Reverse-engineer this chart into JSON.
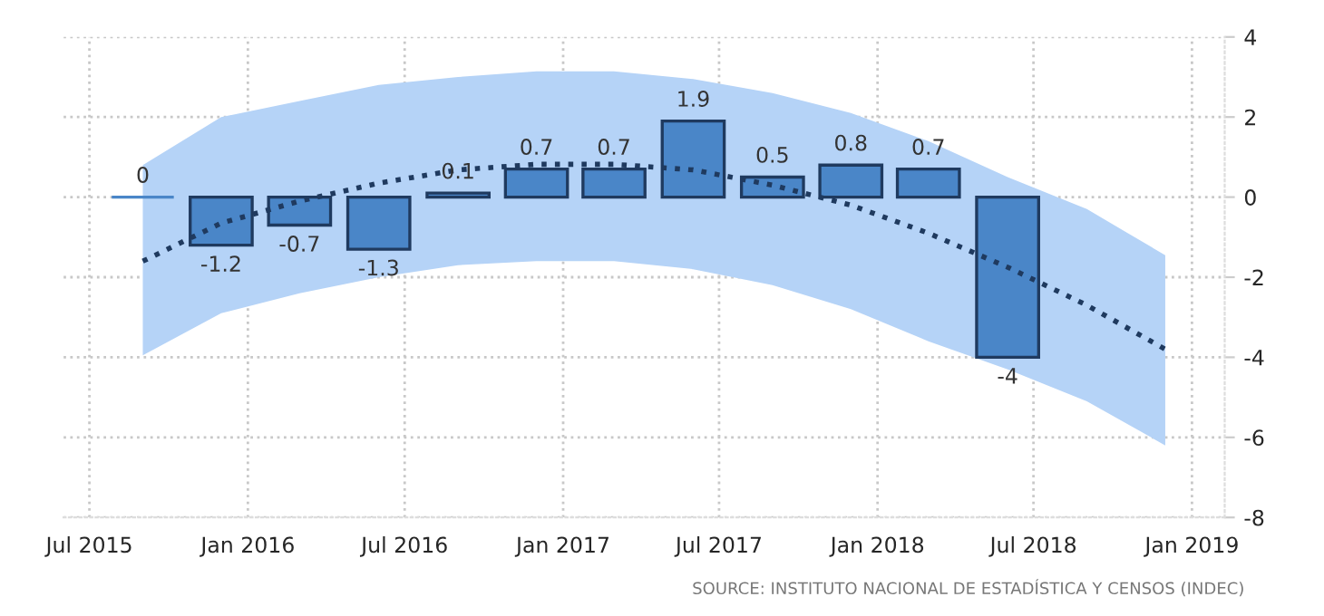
{
  "chart_data": {
    "type": "bar",
    "x": [
      "2015-09",
      "2015-12",
      "2016-03",
      "2016-06",
      "2016-09",
      "2016-12",
      "2017-03",
      "2017-06",
      "2017-09",
      "2017-12",
      "2018-03",
      "2018-06"
    ],
    "series": [
      {
        "color": "#4a86c8",
        "values": [
          0,
          -1.2,
          -0.7,
          -1.3,
          0.1,
          0.7,
          0.7,
          1.9,
          0.5,
          0.8,
          0.7,
          -4
        ],
        "value_labels": [
          "0",
          "-1.2",
          "-0.7",
          "-1.3",
          "0.1",
          "0.7",
          "0.7",
          "1.9",
          "0.5",
          "0.8",
          "0.7",
          "-4"
        ]
      },
      {
        "type": "line",
        "color": "#1f3a5f",
        "line_style": "dotted",
        "x": [
          "2015-09",
          "2015-12",
          "2016-03",
          "2016-06",
          "2016-09",
          "2016-12",
          "2017-03",
          "2017-06",
          "2017-09",
          "2017-12",
          "2018-03",
          "2018-06",
          "2018-09",
          "2018-12"
        ],
        "values": [
          -1.6,
          -0.65,
          -0.1,
          0.35,
          0.68,
          0.82,
          0.82,
          0.68,
          0.3,
          -0.2,
          -0.9,
          -1.75,
          -2.7,
          -3.8
        ],
        "lower": [
          -3.95,
          -2.9,
          -2.4,
          -2.0,
          -1.7,
          -1.6,
          -1.6,
          -1.8,
          -2.2,
          -2.8,
          -3.6,
          -4.3,
          -5.1,
          -6.2
        ],
        "upper": [
          0.8,
          2.0,
          2.4,
          2.8,
          3.0,
          3.14,
          3.14,
          2.95,
          2.6,
          2.1,
          1.4,
          0.5,
          -0.3,
          -1.45
        ]
      }
    ],
    "xlim": [
      "2015-06-01",
      "2019-02-08"
    ],
    "xticks": [
      {
        "value": "2015-07",
        "label": "Jul 2015"
      },
      {
        "value": "2016-01",
        "label": "Jan 2016"
      },
      {
        "value": "2016-07",
        "label": "Jul 2016"
      },
      {
        "value": "2017-01",
        "label": "Jan 2017"
      },
      {
        "value": "2017-07",
        "label": "Jul 2017"
      },
      {
        "value": "2018-01",
        "label": "Jan 2018"
      },
      {
        "value": "2018-07",
        "label": "Jul 2018"
      },
      {
        "value": "2019-01",
        "label": "Jan 2019"
      }
    ],
    "ylim": [
      -8,
      4
    ],
    "yticks": [
      -8,
      -6,
      -4,
      -2,
      0,
      2,
      4
    ],
    "grid": true,
    "annotations": [
      "SOURCE: INSTITUTO NACIONAL DE ESTADÍSTICA Y CENSOS (INDEC)"
    ]
  }
}
